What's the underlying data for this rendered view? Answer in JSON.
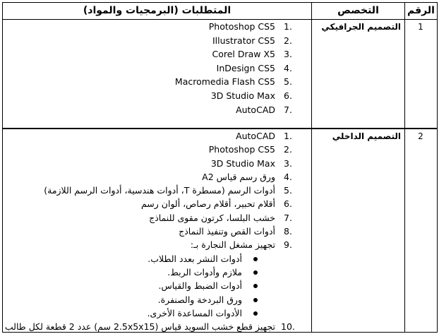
{
  "header": {
    "number": "الرقم",
    "specialty": "التخصص",
    "requirements": "المتطلبات (البرمجيات والمواد)"
  },
  "rows": [
    {
      "number": "1",
      "specialty": "التصميم الجرافيكي",
      "items": [
        {
          "n": "1.",
          "text": "Photoshop  CS5"
        },
        {
          "n": "2.",
          "text": "Illustrator CS5"
        },
        {
          "n": "3.",
          "text": "Corel Draw X5"
        },
        {
          "n": "4.",
          "text": "InDesign CS5"
        },
        {
          "n": "5.",
          "text": "Macromedia Flash CS5"
        },
        {
          "n": "6.",
          "text": "3D Studio Max"
        },
        {
          "n": "7.",
          "text": "AutoCAD"
        }
      ]
    },
    {
      "number": "2",
      "specialty": "التصميم الداخلي",
      "items": [
        {
          "n": "1.",
          "text": "AutoCAD"
        },
        {
          "n": "2.",
          "text": "Photoshop  CS5"
        },
        {
          "n": "3.",
          "text": "3D Studio Max"
        },
        {
          "n": "4.",
          "text": "ورق رسم قياس A2"
        },
        {
          "n": "5.",
          "text": "أدوات الرسم (مسطرة T، أدوات هندسية، أدوات الرسم اللازمة)"
        },
        {
          "n": "6.",
          "text": "أقلام تحبير، أقلام رصاص، ألوان رسم"
        },
        {
          "n": "7.",
          "text": "خشب البلسا، كرتون مقوى للنماذج"
        },
        {
          "n": "8.",
          "text": "أدوات القص وتنفيذ النماذج"
        },
        {
          "n": "9.",
          "text": "تجهيز مشغل النجارة بـ:"
        }
      ],
      "bullets": [
        "أدوات النشر بعدد الطلاب.",
        "ملازم وأدوات الربط.",
        "أدوات الضبط والقياس.",
        "ورق البردخة والصنفرة.",
        "الأدوات المساعدة الأخرى."
      ],
      "last_item": {
        "n": "10.",
        "text": "تجهيز قطع خشب السويد قياس (2.5x5x15 سم) عدد 2 قطعة لكل طالب"
      }
    }
  ]
}
